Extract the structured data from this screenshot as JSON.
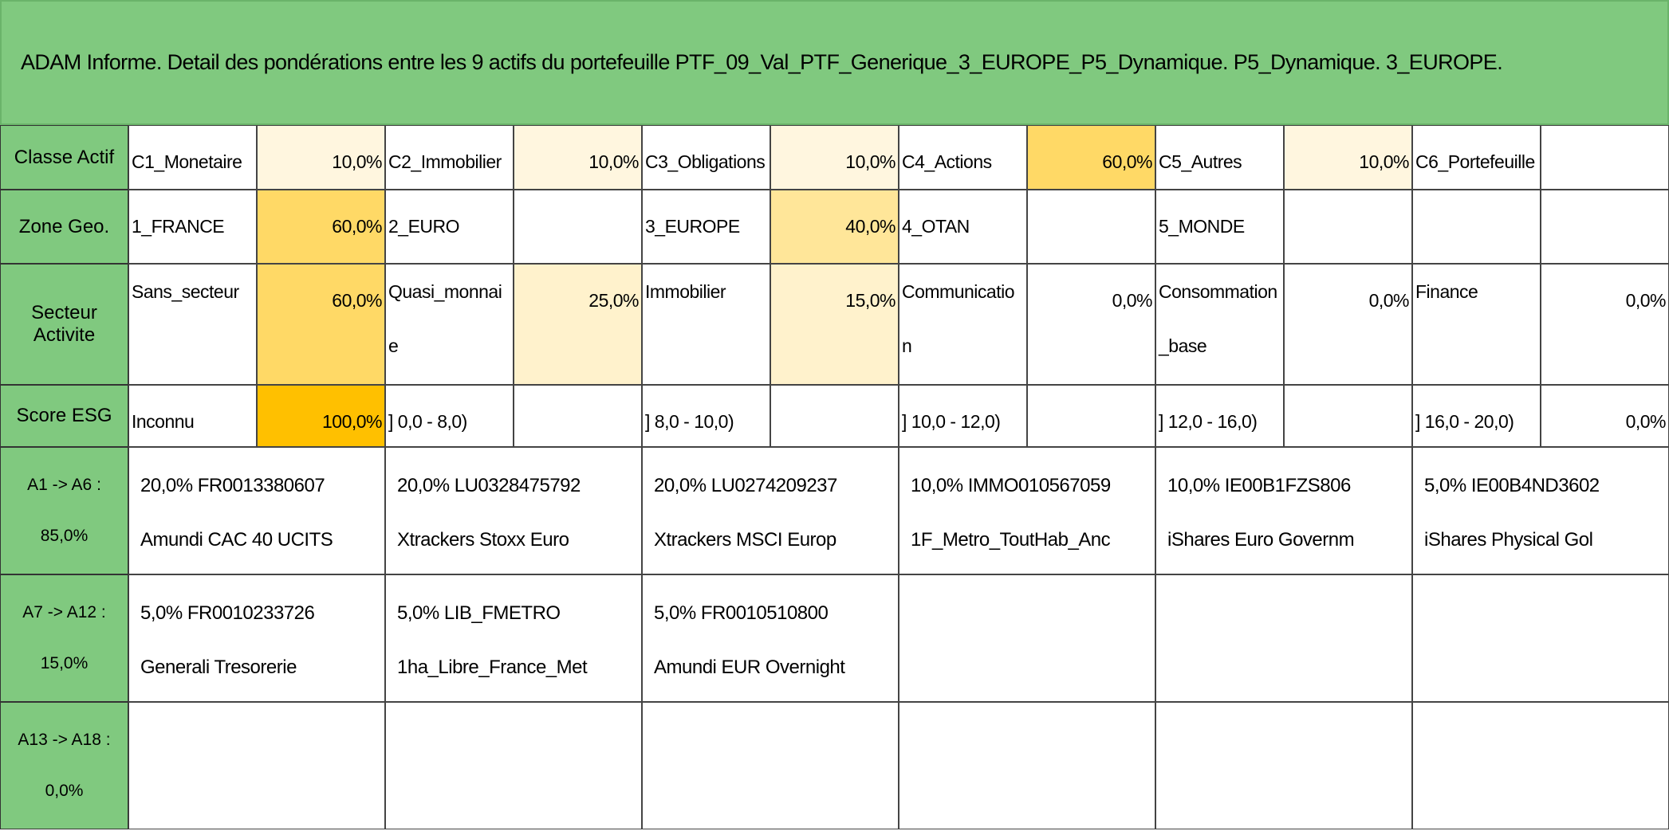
{
  "header": {
    "title": "ADAM Informe. Detail des pondérations entre les 9 actifs du portefeuille PTF_09_Val_PTF_Generique_3_EUROPE_P5_Dynamique. P5_Dynamique. 3_EUROPE."
  },
  "attribute_rows": [
    {
      "label": "Classe Actif",
      "cells": [
        {
          "name": "C1_Monetaire",
          "value": "10,0%",
          "fill": "#fff6df"
        },
        {
          "name": "C2_Immobilier",
          "value": "10,0%",
          "fill": "#fff6df"
        },
        {
          "name": "C3_Obligations",
          "value": "10,0%",
          "fill": "#fff6df"
        },
        {
          "name": "C4_Actions",
          "value": "60,0%",
          "fill": "#ffd966"
        },
        {
          "name": "C5_Autres",
          "value": "10,0%",
          "fill": "#fff6df"
        },
        {
          "name": "C6_Portefeuille"
        }
      ]
    },
    {
      "label": "Zone Geo.",
      "cells": [
        {
          "name": "1_FRANCE",
          "value": "60,0%",
          "fill": "#ffd966"
        },
        {
          "name": "2_EURO"
        },
        {
          "name": "3_EUROPE",
          "value": "40,0%",
          "fill": "#ffe699"
        },
        {
          "name": "4_OTAN"
        },
        {
          "name": "5_MONDE"
        },
        {}
      ]
    },
    {
      "label": "Secteur Activite",
      "cells": [
        {
          "name": "Sans_secteur",
          "value": "60,0%",
          "fill": "#ffd966"
        },
        {
          "name": "Quasi_monnaie",
          "value": "25,0%",
          "fill": "#fff2cc"
        },
        {
          "name": "Immobilier",
          "value": "15,0%",
          "fill": "#fff2cc"
        },
        {
          "name": "Communication",
          "value": "0,0%"
        },
        {
          "name": "Consommation_base",
          "value": "0,0%"
        },
        {
          "name": "Finance",
          "value": "0,0%"
        }
      ]
    },
    {
      "label": "Score ESG",
      "cells": [
        {
          "name": "Inconnu",
          "value": "100,0%",
          "fill": "#ffc000"
        },
        {
          "name": "] 0,0 - 8,0)"
        },
        {
          "name": "] 8,0 - 10,0)"
        },
        {
          "name": "] 10,0 - 12,0)"
        },
        {
          "name": "] 12,0 - 16,0)"
        },
        {
          "name": "] 16,0 - 20,0)",
          "value": "0,0%"
        }
      ]
    }
  ],
  "asset_rows": [
    {
      "range": "A1 -> A6 :",
      "total": "85,0%",
      "assets": [
        {
          "weight_code": "20,0% FR0013380607",
          "name": "Amundi CAC 40 UCITS"
        },
        {
          "weight_code": "20,0% LU0328475792",
          "name": "Xtrackers Stoxx Euro"
        },
        {
          "weight_code": "20,0% LU0274209237",
          "name": "Xtrackers MSCI Europ"
        },
        {
          "weight_code": "10,0% IMMO010567059",
          "name": "1F_Metro_ToutHab_Anc"
        },
        {
          "weight_code": "10,0% IE00B1FZS806",
          "name": "iShares Euro Governm"
        },
        {
          "weight_code": "5,0% IE00B4ND3602",
          "name": "iShares Physical Gol"
        }
      ]
    },
    {
      "range": "A7 -> A12 :",
      "total": "15,0%",
      "assets": [
        {
          "weight_code": "5,0% FR0010233726",
          "name": "Generali Tresorerie"
        },
        {
          "weight_code": "5,0% LIB_FMETRO",
          "name": "1ha_Libre_France_Met"
        },
        {
          "weight_code": "5,0% FR0010510800",
          "name": "Amundi EUR Overnight"
        }
      ]
    },
    {
      "range": "A13 -> A18 :",
      "total": "0,0%",
      "assets": []
    }
  ]
}
